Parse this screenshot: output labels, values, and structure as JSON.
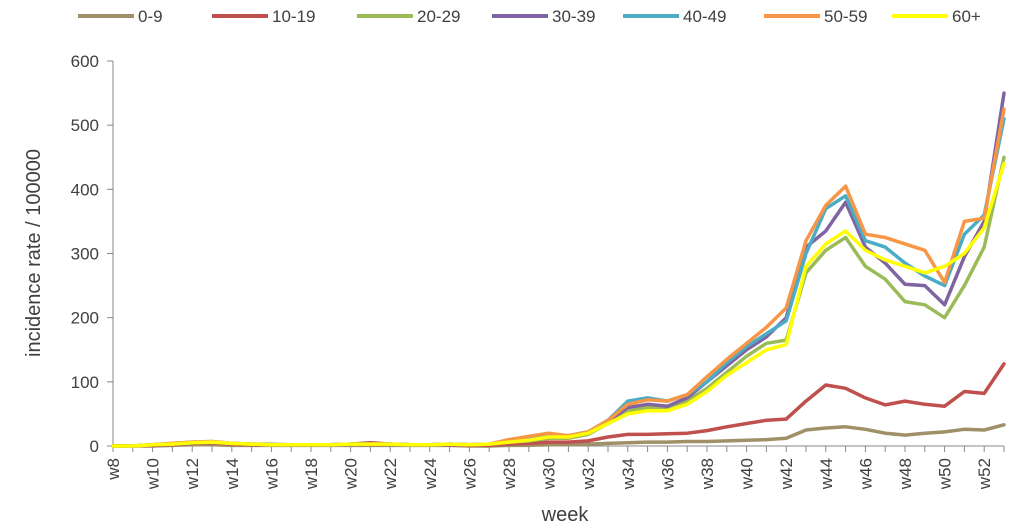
{
  "chart_data": {
    "type": "line",
    "xlabel": "week",
    "ylabel": "incidence rate / 100000",
    "ylim": [
      0,
      600
    ],
    "yticks": [
      0,
      100,
      200,
      300,
      400,
      500,
      600
    ],
    "grid": false,
    "legend_position": "top",
    "categories": [
      "w8",
      "w9",
      "w10",
      "w11",
      "w12",
      "w13",
      "w14",
      "w15",
      "w16",
      "w17",
      "w18",
      "w19",
      "w20",
      "w21",
      "w22",
      "w23",
      "w24",
      "w25",
      "w26",
      "w27",
      "w28",
      "w29",
      "w30",
      "w31",
      "w32",
      "w33",
      "w34",
      "w35",
      "w36",
      "w37",
      "w38",
      "w39",
      "w40",
      "w41",
      "w42",
      "w43",
      "w44",
      "w45",
      "w46",
      "w47",
      "w48",
      "w49",
      "w50",
      "w51",
      "w52",
      "w53"
    ],
    "tick_labels": [
      "w8",
      "w10",
      "w12",
      "w14",
      "w16",
      "w18",
      "w20",
      "w22",
      "w24",
      "w26",
      "w28",
      "w30",
      "w32",
      "w34",
      "w36",
      "w38",
      "w40",
      "w42",
      "w44",
      "w46",
      "w48",
      "w50",
      "w52"
    ],
    "series": [
      {
        "name": "0-9",
        "color": "#a09068",
        "values": [
          0,
          0,
          0,
          1,
          2,
          2,
          1,
          1,
          1,
          1,
          1,
          1,
          1,
          1,
          1,
          1,
          1,
          1,
          0,
          0,
          1,
          1,
          2,
          2,
          3,
          4,
          5,
          6,
          6,
          7,
          7,
          8,
          9,
          10,
          12,
          25,
          28,
          30,
          26,
          20,
          17,
          20,
          22,
          26,
          25,
          33
        ]
      },
      {
        "name": "10-19",
        "color": "#c0504d",
        "values": [
          0,
          0,
          1,
          2,
          4,
          5,
          3,
          2,
          2,
          2,
          2,
          2,
          3,
          5,
          3,
          2,
          2,
          2,
          1,
          1,
          3,
          4,
          6,
          6,
          8,
          14,
          18,
          18,
          19,
          20,
          24,
          30,
          35,
          40,
          42,
          70,
          95,
          90,
          75,
          64,
          70,
          65,
          62,
          85,
          82,
          128
        ]
      },
      {
        "name": "20-29",
        "color": "#9bbb59",
        "values": [
          0,
          0,
          2,
          4,
          6,
          7,
          4,
          3,
          3,
          2,
          2,
          2,
          3,
          3,
          3,
          2,
          2,
          3,
          2,
          3,
          6,
          8,
          12,
          12,
          18,
          35,
          55,
          60,
          58,
          70,
          90,
          115,
          140,
          160,
          165,
          270,
          305,
          325,
          280,
          260,
          225,
          220,
          200,
          250,
          310,
          450
        ]
      },
      {
        "name": "30-39",
        "color": "#8064a2",
        "values": [
          0,
          0,
          2,
          3,
          5,
          6,
          4,
          3,
          2,
          2,
          2,
          2,
          3,
          3,
          3,
          2,
          2,
          3,
          2,
          3,
          7,
          10,
          14,
          14,
          20,
          38,
          60,
          65,
          62,
          75,
          100,
          125,
          150,
          170,
          200,
          310,
          335,
          380,
          310,
          285,
          252,
          250,
          220,
          295,
          350,
          550
        ]
      },
      {
        "name": "40-49",
        "color": "#4bacc6",
        "values": [
          0,
          0,
          2,
          3,
          5,
          6,
          4,
          3,
          2,
          2,
          2,
          2,
          3,
          3,
          3,
          2,
          2,
          3,
          2,
          3,
          8,
          12,
          16,
          16,
          22,
          40,
          70,
          75,
          70,
          80,
          100,
          130,
          155,
          175,
          195,
          300,
          370,
          390,
          320,
          310,
          285,
          265,
          250,
          330,
          360,
          510
        ]
      },
      {
        "name": "50-59",
        "color": "#f79646",
        "values": [
          0,
          0,
          2,
          4,
          6,
          7,
          4,
          3,
          2,
          2,
          2,
          2,
          3,
          3,
          3,
          2,
          2,
          3,
          2,
          3,
          10,
          15,
          20,
          16,
          22,
          40,
          65,
          72,
          70,
          80,
          108,
          135,
          160,
          185,
          215,
          320,
          375,
          405,
          330,
          325,
          315,
          305,
          255,
          350,
          355,
          525
        ]
      },
      {
        "name": "60+",
        "color": "#ffff00",
        "values": [
          0,
          0,
          2,
          3,
          5,
          6,
          4,
          3,
          2,
          2,
          2,
          2,
          3,
          3,
          3,
          2,
          2,
          3,
          2,
          3,
          6,
          9,
          14,
          14,
          20,
          35,
          50,
          55,
          55,
          65,
          85,
          110,
          130,
          150,
          158,
          280,
          315,
          335,
          305,
          290,
          280,
          270,
          280,
          300,
          340,
          440
        ]
      }
    ]
  }
}
